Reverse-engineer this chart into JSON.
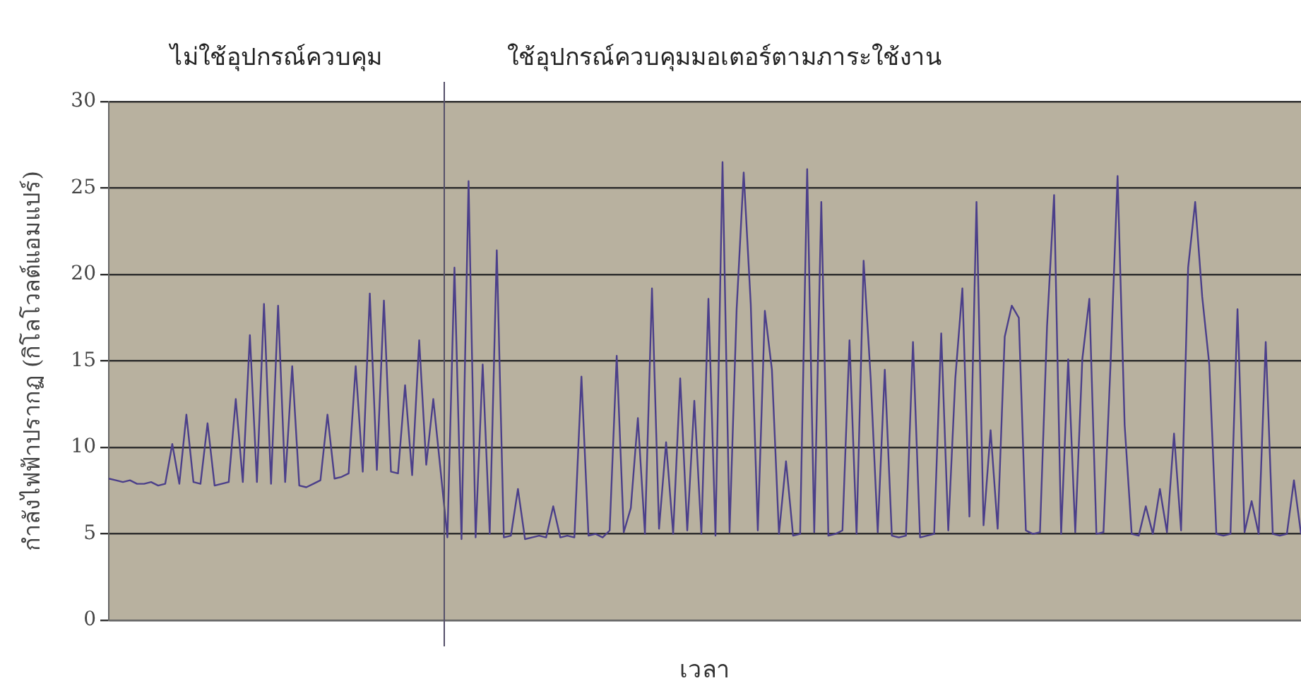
{
  "chart_data": {
    "type": "line",
    "xlabel": "เวลา",
    "ylabel": "กำลังไฟฟ้าปรากฏ (กิโลโวลต์แอมแปร์)",
    "annotations": [
      "ไม่ใช้อุปกรณ์ควบคุม",
      "ใช้อุปกรณ์ควบคุมมอเตอร์ตามภาระใช้งาน"
    ],
    "categories": [
      null,
      null,
      null,
      null,
      null,
      null,
      null,
      null,
      null,
      null,
      null,
      null,
      null,
      null,
      null,
      null,
      null,
      null,
      null,
      null,
      null,
      null,
      null,
      null,
      null,
      null,
      null,
      null,
      null,
      null,
      null,
      null,
      null,
      null,
      null,
      null,
      null,
      null,
      null,
      null,
      null,
      null,
      null,
      null,
      null,
      null,
      null,
      null,
      null,
      null,
      null,
      null,
      null,
      null,
      null,
      null,
      null,
      null,
      null,
      null,
      null,
      null,
      null,
      null,
      null,
      null,
      null,
      null,
      null,
      null,
      null,
      null,
      null,
      null,
      null,
      null,
      null,
      null,
      null,
      null,
      null,
      null,
      null,
      null,
      null,
      null,
      null,
      null,
      null,
      null,
      null,
      null,
      null,
      null,
      null,
      null,
      null,
      null,
      null,
      null,
      null,
      null,
      null,
      null,
      null,
      null,
      null,
      null,
      null,
      null,
      null,
      null,
      null,
      null,
      null,
      null,
      null,
      null,
      null,
      null,
      null,
      null,
      null,
      null,
      null,
      null,
      null,
      null,
      null,
      null,
      null,
      null,
      null,
      null,
      null,
      null,
      null,
      null,
      null,
      null,
      null,
      null,
      null,
      null,
      null,
      null,
      null,
      null,
      null,
      null,
      null,
      null,
      null,
      null,
      null,
      null,
      null,
      null,
      null,
      null,
      null,
      null,
      null,
      null,
      null,
      null,
      null,
      null,
      null,
      null
    ],
    "series": [
      {
        "color": "#4b3f8a",
        "values": [
          8.2,
          8.1,
          8.0,
          8.1,
          7.9,
          7.9,
          8.0,
          7.8,
          7.9,
          10.2,
          7.9,
          11.9,
          8.0,
          7.9,
          11.4,
          7.8,
          7.9,
          8.0,
          12.8,
          8.0,
          16.5,
          8.0,
          18.3,
          7.9,
          18.2,
          8.0,
          14.7,
          7.8,
          7.7,
          7.9,
          8.1,
          11.9,
          8.2,
          8.3,
          8.5,
          14.7,
          8.6,
          18.9,
          8.7,
          18.5,
          8.6,
          8.5,
          13.6,
          8.4,
          16.2,
          9.0,
          12.8,
          8.8,
          4.8,
          20.4,
          4.7,
          25.4,
          4.8,
          14.8,
          5.0,
          21.4,
          4.8,
          4.9,
          7.6,
          4.7,
          4.8,
          4.9,
          4.8,
          6.6,
          4.8,
          4.9,
          4.8,
          14.1,
          4.9,
          5.0,
          4.8,
          5.2,
          15.3,
          5.1,
          6.5,
          11.7,
          5.0,
          19.2,
          5.3,
          10.3,
          5.0,
          14.0,
          5.2,
          12.7,
          5.0,
          18.6,
          4.9,
          26.5,
          5.1,
          18.0,
          25.9,
          18.3,
          5.2,
          17.9,
          14.5,
          5.0,
          9.2,
          4.9,
          5.0,
          26.1,
          5.1,
          24.2,
          4.9,
          5.0,
          5.2,
          16.2,
          5.0,
          20.8,
          14.0,
          5.1,
          14.5,
          4.9,
          4.8,
          4.9,
          16.1,
          4.8,
          4.9,
          5.0,
          16.6,
          5.2,
          14.0,
          19.2,
          6.0,
          24.2,
          5.5,
          11.0,
          5.3,
          16.4,
          18.2,
          17.5,
          5.2,
          5.0,
          5.1,
          17.0,
          24.6,
          5.0,
          15.1,
          5.1,
          15.1,
          18.6,
          5.0,
          5.1,
          14.8,
          25.7,
          11.3,
          5.0,
          4.9,
          6.6,
          5.0,
          7.6,
          5.1,
          10.8,
          5.2,
          20.4,
          24.2,
          18.7,
          14.8,
          5.0,
          4.9,
          5.0,
          18.0,
          5.1,
          6.9,
          5.0,
          16.1,
          5.0,
          4.9,
          5.0,
          8.1,
          5.0
        ]
      }
    ],
    "ylim": [
      0,
      30
    ],
    "yticks": [
      0,
      5,
      10,
      15,
      20,
      25,
      30
    ],
    "grid": "y",
    "legend": false,
    "tick_labels": "y",
    "marker": "none",
    "line_style": "solid"
  }
}
